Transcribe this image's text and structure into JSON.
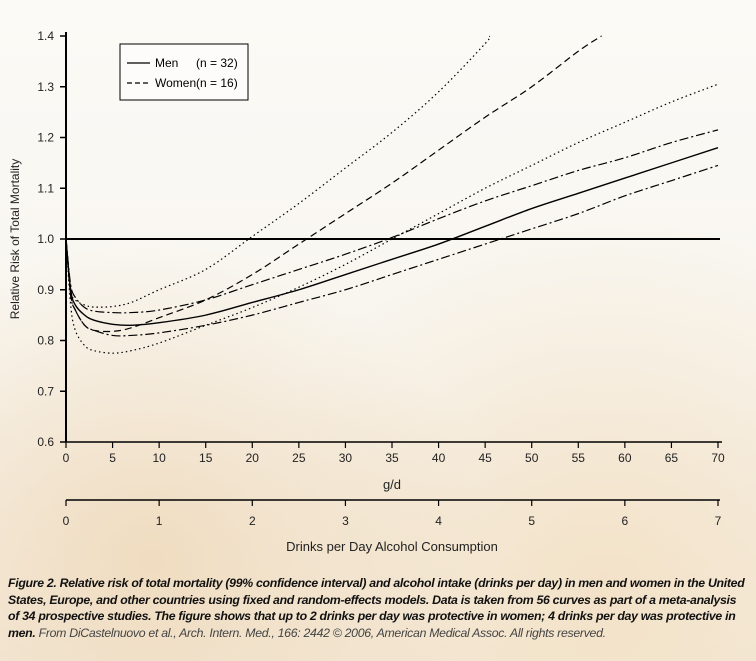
{
  "chart_data": {
    "type": "line",
    "xlabel": "g/d",
    "ylabel": "Relative Risk of Total Mortality",
    "xlim": [
      0,
      70
    ],
    "ylim": [
      0.6,
      1.4
    ],
    "xticks": [
      "0",
      "5",
      "10",
      "15",
      "20",
      "25",
      "30",
      "35",
      "40",
      "45",
      "50",
      "55",
      "60",
      "65",
      "70"
    ],
    "yticks": [
      "0.6",
      "0.7",
      "0.8",
      "0.9",
      "1.0",
      "1.1",
      "1.2",
      "1.3",
      "1.4"
    ],
    "secondary_x": {
      "label": "Drinks per Day Alcohol Consumption",
      "ticks": [
        "0",
        "1",
        "2",
        "3",
        "4",
        "5",
        "6",
        "7"
      ],
      "range": [
        0,
        7
      ]
    },
    "reference_line": 1.0,
    "legend": {
      "position": "top-left",
      "entries": [
        {
          "name": "Men",
          "n": "(n = 32)",
          "style": "solid"
        },
        {
          "name": "Women",
          "n": "(n = 16)",
          "style": "dashed"
        }
      ]
    },
    "series": [
      {
        "name": "Men",
        "style": "solid",
        "points": [
          [
            0,
            1.0
          ],
          [
            0.5,
            0.9
          ],
          [
            1,
            0.87
          ],
          [
            2,
            0.85
          ],
          [
            3,
            0.84
          ],
          [
            5,
            0.832
          ],
          [
            7,
            0.83
          ],
          [
            10,
            0.835
          ],
          [
            15,
            0.85
          ],
          [
            20,
            0.875
          ],
          [
            25,
            0.9
          ],
          [
            30,
            0.93
          ],
          [
            35,
            0.96
          ],
          [
            40,
            0.99
          ],
          [
            45,
            1.025
          ],
          [
            50,
            1.06
          ],
          [
            55,
            1.09
          ],
          [
            60,
            1.12
          ],
          [
            65,
            1.15
          ],
          [
            70,
            1.18
          ]
        ]
      },
      {
        "style": "dashdot",
        "points": [
          [
            0,
            1.0
          ],
          [
            0.5,
            0.91
          ],
          [
            1,
            0.885
          ],
          [
            2,
            0.865
          ],
          [
            3,
            0.858
          ],
          [
            5,
            0.855
          ],
          [
            7,
            0.855
          ],
          [
            10,
            0.86
          ],
          [
            15,
            0.88
          ],
          [
            20,
            0.91
          ],
          [
            25,
            0.94
          ],
          [
            30,
            0.97
          ],
          [
            35,
            1.003
          ],
          [
            40,
            1.04
          ],
          [
            45,
            1.075
          ],
          [
            50,
            1.105
          ],
          [
            55,
            1.135
          ],
          [
            60,
            1.16
          ],
          [
            65,
            1.19
          ],
          [
            70,
            1.215
          ]
        ]
      },
      {
        "style": "dashdot",
        "points": [
          [
            0,
            1.0
          ],
          [
            0.5,
            0.89
          ],
          [
            1,
            0.86
          ],
          [
            2,
            0.83
          ],
          [
            3,
            0.82
          ],
          [
            5,
            0.81
          ],
          [
            7,
            0.81
          ],
          [
            10,
            0.815
          ],
          [
            15,
            0.83
          ],
          [
            20,
            0.85
          ],
          [
            25,
            0.875
          ],
          [
            30,
            0.9
          ],
          [
            35,
            0.93
          ],
          [
            40,
            0.96
          ],
          [
            45,
            0.99
          ],
          [
            50,
            1.02
          ],
          [
            55,
            1.05
          ],
          [
            60,
            1.085
          ],
          [
            65,
            1.115
          ],
          [
            70,
            1.145
          ]
        ]
      },
      {
        "name": "Women",
        "style": "dashed",
        "points": [
          [
            0,
            1.0
          ],
          [
            0.5,
            0.89
          ],
          [
            1,
            0.86
          ],
          [
            2,
            0.83
          ],
          [
            3,
            0.82
          ],
          [
            5,
            0.818
          ],
          [
            7,
            0.825
          ],
          [
            10,
            0.845
          ],
          [
            15,
            0.88
          ],
          [
            20,
            0.93
          ],
          [
            25,
            0.99
          ],
          [
            30,
            1.05
          ],
          [
            35,
            1.11
          ],
          [
            40,
            1.175
          ],
          [
            45,
            1.24
          ],
          [
            50,
            1.3
          ],
          [
            55,
            1.37
          ],
          [
            57.5,
            1.4
          ]
        ]
      },
      {
        "style": "dotted",
        "points": [
          [
            0,
            1.0
          ],
          [
            0.5,
            0.9
          ],
          [
            1,
            0.88
          ],
          [
            2,
            0.87
          ],
          [
            3,
            0.866
          ],
          [
            5,
            0.867
          ],
          [
            7,
            0.875
          ],
          [
            10,
            0.9
          ],
          [
            15,
            0.94
          ],
          [
            20,
            1.005
          ],
          [
            25,
            1.07
          ],
          [
            30,
            1.14
          ],
          [
            35,
            1.21
          ],
          [
            40,
            1.29
          ],
          [
            45,
            1.385
          ],
          [
            45.5,
            1.4
          ]
        ]
      },
      {
        "style": "dotted",
        "points": [
          [
            0,
            1.0
          ],
          [
            0.5,
            0.87
          ],
          [
            1,
            0.82
          ],
          [
            2,
            0.79
          ],
          [
            3,
            0.78
          ],
          [
            5,
            0.775
          ],
          [
            7,
            0.78
          ],
          [
            10,
            0.795
          ],
          [
            15,
            0.83
          ],
          [
            20,
            0.865
          ],
          [
            25,
            0.905
          ],
          [
            30,
            0.95
          ],
          [
            35,
            1.0
          ],
          [
            40,
            1.05
          ],
          [
            45,
            1.1
          ],
          [
            50,
            1.145
          ],
          [
            55,
            1.19
          ],
          [
            60,
            1.23
          ],
          [
            65,
            1.27
          ],
          [
            70,
            1.305
          ]
        ]
      }
    ]
  },
  "caption": {
    "bold": "Figure 2. Relative risk of total mortality (99% confidence interval) and alcohol intake (drinks per day) in men and women in the United States, Europe, and other countries using fixed and random-effects models. Data is taken from 56 curves as part of a meta-analysis of 34 prospective studies. The figure shows that up to 2 drinks per day was protective in women; 4 drinks per day was protective in men.",
    "source": "From DiCastelnuovo et al., Arch. Intern. Med., 166: 2442 © 2006, American Medical Assoc. All rights reserved."
  }
}
